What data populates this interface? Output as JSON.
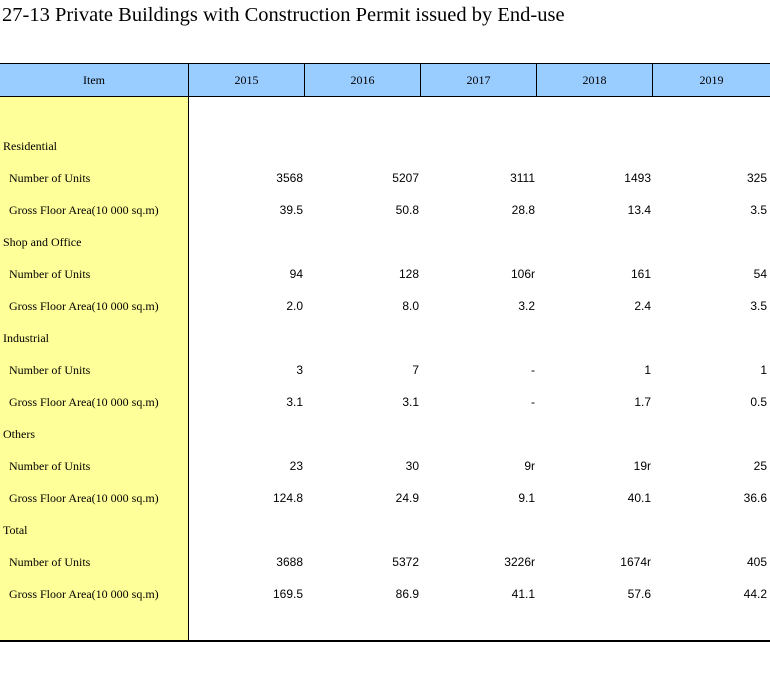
{
  "title": "27-13  Private Buildings with Construction Permit issued by End-use",
  "header": {
    "item": "Item",
    "years": [
      "2015",
      "2016",
      "2017",
      "2018",
      "2019"
    ]
  },
  "rows": [
    {
      "type": "group",
      "label": "Residential"
    },
    {
      "type": "sub",
      "label": "Number of Units",
      "values": [
        "3568",
        "5207",
        "3111",
        "1493",
        "325"
      ]
    },
    {
      "type": "sub",
      "label": "Gross Floor Area(10 000 sq.m)",
      "values": [
        "39.5",
        "50.8",
        "28.8",
        "13.4",
        "3.5"
      ]
    },
    {
      "type": "group",
      "label": "Shop and Office"
    },
    {
      "type": "sub",
      "label": "Number of Units",
      "values": [
        "94",
        "128",
        "106r",
        "161",
        "54"
      ]
    },
    {
      "type": "sub",
      "label": "Gross Floor Area(10 000 sq.m)",
      "values": [
        "2.0",
        "8.0",
        "3.2",
        "2.4",
        "3.5"
      ]
    },
    {
      "type": "group",
      "label": "Industrial"
    },
    {
      "type": "sub",
      "label": "Number of Units",
      "values": [
        "3",
        "7",
        "-",
        "1",
        "1"
      ]
    },
    {
      "type": "sub",
      "label": "Gross Floor Area(10 000 sq.m)",
      "values": [
        "3.1",
        "3.1",
        "-",
        "1.7",
        "0.5"
      ]
    },
    {
      "type": "group",
      "label": "Others"
    },
    {
      "type": "sub",
      "label": "Number of Units",
      "values": [
        "23",
        "30",
        "9r",
        "19r",
        "25"
      ]
    },
    {
      "type": "sub",
      "label": "Gross Floor Area(10 000 sq.m)",
      "values": [
        "124.8",
        "24.9",
        "9.1",
        "40.1",
        "36.6"
      ]
    },
    {
      "type": "group",
      "label": "Total"
    },
    {
      "type": "sub",
      "label": "Number of Units",
      "values": [
        "3688",
        "5372",
        "3226r",
        "1674r",
        "405"
      ]
    },
    {
      "type": "sub",
      "label": "Gross Floor Area(10 000 sq.m)",
      "values": [
        "169.5",
        "86.9",
        "41.1",
        "57.6",
        "44.2"
      ]
    }
  ]
}
